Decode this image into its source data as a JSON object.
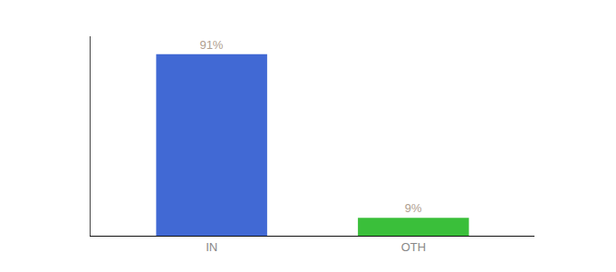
{
  "chart_data": {
    "type": "bar",
    "categories": [
      "IN",
      "OTH"
    ],
    "values": [
      91,
      9
    ],
    "colors": [
      "#4169d4",
      "#3abf3a"
    ],
    "value_labels": [
      "91%",
      "9%"
    ],
    "data_labels": true,
    "ylim": [
      0,
      100
    ],
    "tick_labels": "x",
    "grid": false
  }
}
